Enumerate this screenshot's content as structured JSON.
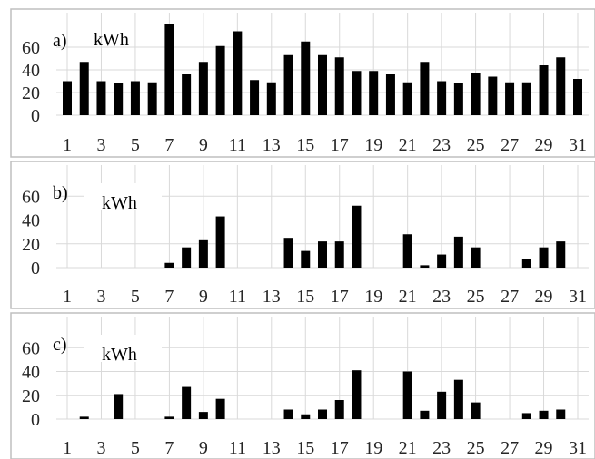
{
  "chart_data": [
    {
      "type": "bar",
      "panel_label": "a)",
      "unit": "kWh",
      "x": [
        1,
        2,
        3,
        4,
        5,
        6,
        7,
        8,
        9,
        10,
        11,
        12,
        13,
        14,
        15,
        16,
        17,
        18,
        19,
        20,
        21,
        22,
        23,
        24,
        25,
        26,
        27,
        28,
        29,
        30,
        31
      ],
      "x_tick_labels": [
        "1",
        "3",
        "5",
        "7",
        "9",
        "11",
        "13",
        "15",
        "17",
        "19",
        "21",
        "23",
        "25",
        "27",
        "29",
        "31"
      ],
      "values": [
        30,
        47,
        30,
        28,
        30,
        29,
        80,
        36,
        47,
        61,
        74,
        31,
        29,
        53,
        65,
        53,
        51,
        39,
        39,
        36,
        29,
        47,
        30,
        28,
        37,
        34,
        29,
        29,
        44,
        51,
        32
      ],
      "ylim": [
        0,
        80
      ],
      "y_ticks": [
        0,
        20,
        40,
        60
      ],
      "grid": true,
      "legend": "none"
    },
    {
      "type": "bar",
      "panel_label": "b)",
      "unit": "kWh",
      "x": [
        1,
        2,
        3,
        4,
        5,
        6,
        7,
        8,
        9,
        10,
        11,
        12,
        13,
        14,
        15,
        16,
        17,
        18,
        19,
        20,
        21,
        22,
        23,
        24,
        25,
        26,
        27,
        28,
        29,
        30,
        31
      ],
      "x_tick_labels": [
        "1",
        "3",
        "5",
        "7",
        "9",
        "11",
        "13",
        "15",
        "17",
        "19",
        "21",
        "23",
        "25",
        "27",
        "29",
        "31"
      ],
      "values": [
        0,
        0,
        0,
        0,
        0,
        0,
        4,
        17,
        23,
        43,
        0,
        0,
        0,
        25,
        14,
        22,
        22,
        52,
        0,
        0,
        28,
        2,
        11,
        26,
        17,
        0,
        0,
        7,
        17,
        22,
        0
      ],
      "ylim": [
        0,
        80
      ],
      "y_ticks": [
        0,
        20,
        40,
        60
      ],
      "grid": true,
      "legend": "none"
    },
    {
      "type": "bar",
      "panel_label": "c)",
      "unit": "kWh",
      "x": [
        1,
        2,
        3,
        4,
        5,
        6,
        7,
        8,
        9,
        10,
        11,
        12,
        13,
        14,
        15,
        16,
        17,
        18,
        19,
        20,
        21,
        22,
        23,
        24,
        25,
        26,
        27,
        28,
        29,
        30,
        31
      ],
      "x_tick_labels": [
        "1",
        "3",
        "5",
        "7",
        "9",
        "11",
        "13",
        "15",
        "17",
        "19",
        "21",
        "23",
        "25",
        "27",
        "29",
        "31"
      ],
      "values": [
        0,
        2,
        0,
        21,
        0,
        0,
        2,
        27,
        6,
        17,
        0,
        0,
        0,
        8,
        4,
        8,
        16,
        41,
        0,
        0,
        40,
        7,
        23,
        33,
        14,
        0,
        0,
        5,
        7,
        8,
        0
      ],
      "ylim": [
        0,
        80
      ],
      "y_ticks": [
        0,
        20,
        40,
        60
      ],
      "grid": true,
      "legend": "none"
    }
  ]
}
